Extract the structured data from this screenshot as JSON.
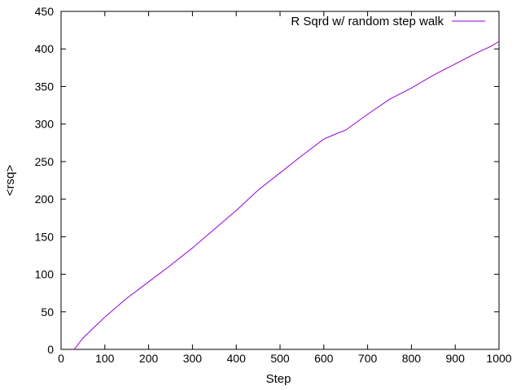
{
  "chart_data": {
    "type": "line",
    "title": "",
    "xlabel": "Step",
    "ylabel": "<rsq>",
    "xlim": [
      0,
      1000
    ],
    "ylim": [
      0,
      450
    ],
    "xticks": [
      0,
      100,
      200,
      300,
      400,
      500,
      600,
      700,
      800,
      900,
      1000
    ],
    "yticks": [
      0,
      50,
      100,
      150,
      200,
      250,
      300,
      350,
      400,
      450
    ],
    "grid": false,
    "legend_position": "top-right",
    "series": [
      {
        "name": "R Sqrd w/ random step walk",
        "color": "#9400d3",
        "x": [
          30,
          50,
          100,
          150,
          200,
          250,
          300,
          350,
          400,
          450,
          500,
          550,
          600,
          620,
          650,
          700,
          750,
          800,
          850,
          900,
          950,
          980,
          1000
        ],
        "y": [
          0,
          15,
          43,
          68,
          90,
          112,
          135,
          160,
          185,
          212,
          235,
          258,
          280,
          285,
          292,
          313,
          333,
          348,
          365,
          380,
          395,
          403,
          410
        ]
      }
    ]
  }
}
